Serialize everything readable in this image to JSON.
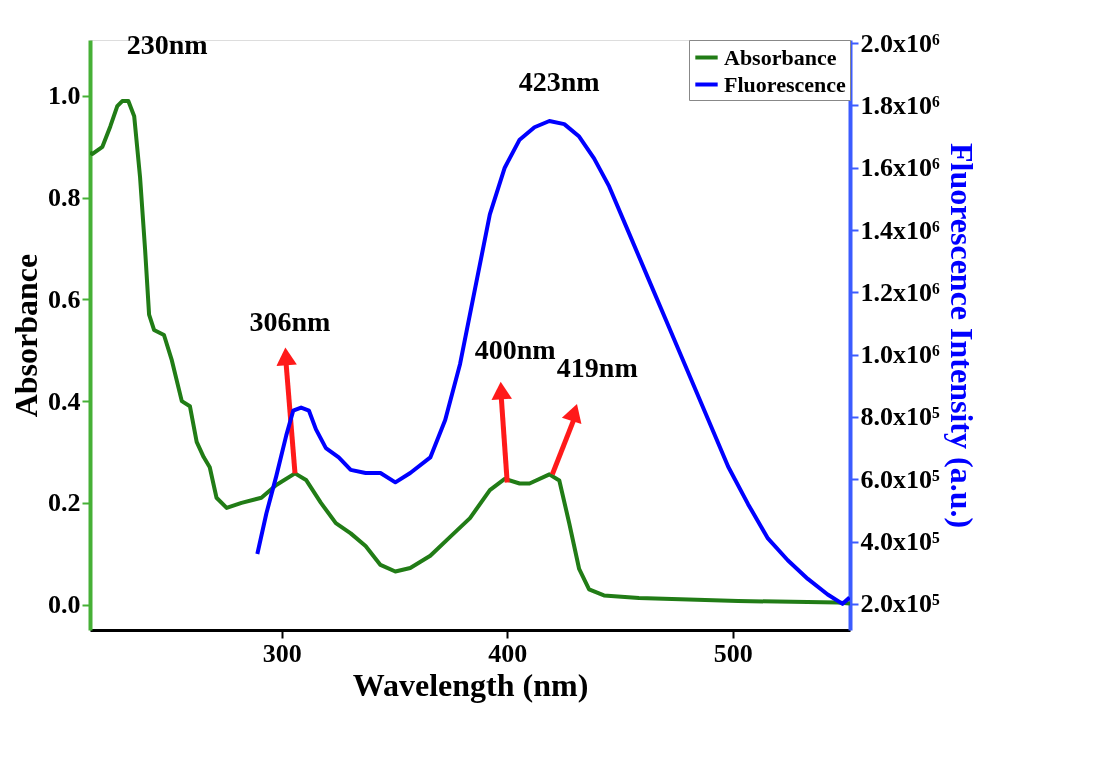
{
  "chart_data": {
    "type": "line",
    "xlabel": "Wavelength (nm)",
    "ylabel": "Absorbance",
    "y2label": "Fluorescence Intensity (a.u.)",
    "xlim": [
      215,
      552
    ],
    "xticks": [
      300,
      400,
      500
    ],
    "ylim": [
      -0.05,
      1.11
    ],
    "yticks": [
      {
        "value": 0,
        "label": "0.0"
      },
      {
        "value": 0.2,
        "label": "0.2"
      },
      {
        "value": 0.4,
        "label": "0.4"
      },
      {
        "value": 0.6,
        "label": "0.6"
      },
      {
        "value": 0.8,
        "label": "0.8"
      },
      {
        "value": 1,
        "label": "1.0"
      }
    ],
    "y2lim": [
      116000,
      2010000
    ],
    "y2ticks": [
      {
        "value": 200000,
        "label": "2.0x10⁵"
      },
      {
        "value": 400000,
        "label": "4.0x10⁵"
      },
      {
        "value": 600000,
        "label": "6.0x10⁵"
      },
      {
        "value": 800000,
        "label": "8.0x10⁵"
      },
      {
        "value": 1000000,
        "label": "1.0x10⁶"
      },
      {
        "value": 1200000,
        "label": "1.2x10⁶"
      },
      {
        "value": 1400000,
        "label": "1.4x10⁶"
      },
      {
        "value": 1600000,
        "label": "1.6x10⁶"
      },
      {
        "value": 1800000,
        "label": "1.8x10⁶"
      },
      {
        "value": 2000000,
        "label": "2.0x10⁶"
      }
    ],
    "grid": false,
    "legend": "top right",
    "marker": "none",
    "line_style": "solid",
    "series": [
      {
        "name": "Absorbance",
        "color": "#217c16",
        "x": [
          215,
          216.1,
          220.5,
          224.0,
          227.1,
          229.3,
          232.0,
          234.6,
          237.2,
          239.4,
          241.2,
          243.4,
          247.8,
          251.3,
          255.7,
          259.3,
          262.3,
          265.4,
          268.1,
          271.1,
          275.6,
          282.2,
          291.0,
          297.6,
          305.9,
          310.8,
          317.4,
          324.0,
          330.6,
          337.2,
          343.8,
          350.4,
          357.0,
          365.9,
          374.7,
          383.5,
          392.3,
          398.9,
          405.5,
          409.9,
          418.7,
          423.1,
          427.5,
          431.9,
          436.3,
          442.9,
          458.4,
          502.4,
          546.5,
          552
        ],
        "values": [
          0.889,
          0.886,
          0.9,
          0.94,
          0.98,
          0.99,
          0.99,
          0.96,
          0.84,
          0.7,
          0.57,
          0.54,
          0.53,
          0.48,
          0.4,
          0.39,
          0.32,
          0.29,
          0.27,
          0.21,
          0.19,
          0.2,
          0.21,
          0.235,
          0.258,
          0.245,
          0.2,
          0.16,
          0.14,
          0.115,
          0.078,
          0.065,
          0.072,
          0.096,
          0.133,
          0.17,
          0.225,
          0.247,
          0.238,
          0.238,
          0.256,
          0.244,
          0.16,
          0.07,
          0.03,
          0.018,
          0.013,
          0.007,
          0.004,
          0.002
        ]
      },
      {
        "name": "Fluorescence",
        "color": "#0000ff",
        "axis": "y2",
        "x": [
          289.2,
          293.2,
          297.6,
          302.0,
          305.1,
          308.6,
          312.1,
          315.2,
          319.6,
          325.3,
          330.6,
          337.2,
          343.8,
          350.4,
          357.0,
          365.9,
          372.5,
          379.1,
          385.7,
          392.3,
          398.9,
          405.5,
          412.1,
          418.7,
          425.3,
          431.9,
          438.5,
          445.2,
          454.0,
          462.8,
          471.6,
          480.4,
          489.2,
          498.0,
          506.8,
          515.6,
          524.4,
          533.3,
          542.1,
          548.7,
          551.8
        ],
        "values": [
          360000,
          490000,
          610000,
          740000,
          820000,
          830000,
          820000,
          760000,
          700000,
          670000,
          630000,
          620000,
          620000,
          590000,
          620000,
          670000,
          790000,
          970000,
          1210000,
          1450000,
          1600000,
          1690000,
          1730000,
          1750000,
          1740000,
          1700000,
          1630000,
          1540000,
          1390000,
          1240000,
          1090000,
          940000,
          790000,
          640000,
          520000,
          410000,
          340000,
          280000,
          230000,
          200000,
          220000
        ]
      }
    ],
    "annotations": [
      {
        "text": "230nm",
        "x": 229.3,
        "y": 0.99
      },
      {
        "text": "306nm",
        "x": 305.9,
        "y": 0.258
      },
      {
        "text": "400nm",
        "x": 400,
        "y": 0.24
      },
      {
        "text": "419nm",
        "x": 420,
        "y": 0.256
      },
      {
        "text": "423nm",
        "x": 423,
        "y": 0.95
      }
    ]
  }
}
